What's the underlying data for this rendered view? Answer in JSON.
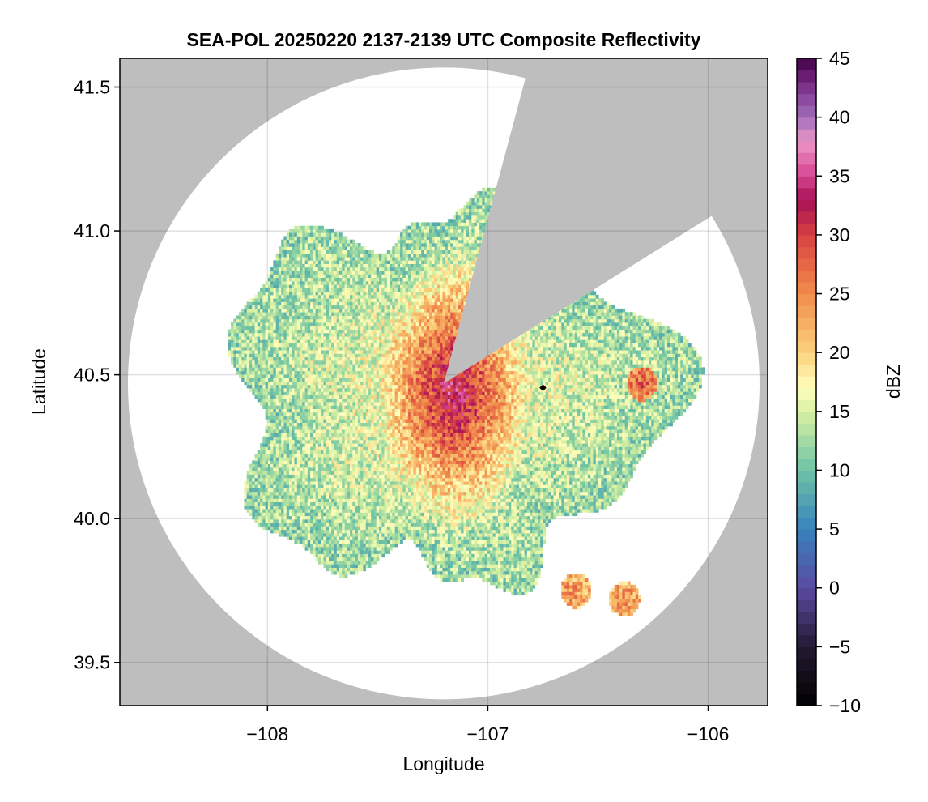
{
  "chart_data": {
    "type": "heatmap",
    "title": "SEA-POL 20250220 2137-2139 UTC Composite Reflectivity",
    "xlabel": "Longitude",
    "ylabel": "Latitude",
    "xlim": [
      -108.67,
      -105.73
    ],
    "ylim": [
      39.35,
      41.6
    ],
    "xticks": [
      -108,
      -107,
      -106
    ],
    "xtick_labels": [
      "−108",
      "−107",
      "−106"
    ],
    "yticks": [
      39.5,
      40.0,
      40.5,
      41.0,
      41.5
    ],
    "ytick_labels": [
      "39.5",
      "40.0",
      "40.5",
      "41.0",
      "41.5"
    ],
    "grid": true,
    "colorbar": {
      "label": "dBZ",
      "min": -10,
      "max": 45,
      "ticks": [
        -10,
        -5,
        0,
        5,
        10,
        15,
        20,
        25,
        30,
        35,
        40,
        45
      ],
      "tick_labels": [
        "−10",
        "−5",
        "0",
        "5",
        "10",
        "15",
        "20",
        "25",
        "30",
        "35",
        "40",
        "45"
      ],
      "colormap": "Spectral_r (banded, 1 dBZ steps)"
    },
    "radar": {
      "center_lon": -107.2,
      "center_lat": 40.47,
      "range_km": 125,
      "blocked_sectors_deg_from_north": [
        [
          15,
          58
        ]
      ]
    },
    "marker": {
      "lon": -106.75,
      "lat": 40.455,
      "color": "#000000"
    },
    "no_data_color": "#bebebe",
    "echo_regions": [
      {
        "description": "main stratiform precipitation area",
        "lon_range": [
          -108.2,
          -106.2
        ],
        "lat_range": [
          39.8,
          41.05
        ],
        "dbz_typical": 18
      },
      {
        "description": "enhanced band",
        "lon": -107.15,
        "lat": 40.45,
        "dbz_max": 35
      },
      {
        "description": "isolated cell",
        "lon": -106.3,
        "lat": 40.47,
        "dbz_typical": 25
      },
      {
        "description": "isolated cell",
        "lon": -106.6,
        "lat": 39.75,
        "dbz_typical": 22
      },
      {
        "description": "isolated cell",
        "lon": -106.38,
        "lat": 39.72,
        "dbz_typical": 22
      }
    ]
  }
}
